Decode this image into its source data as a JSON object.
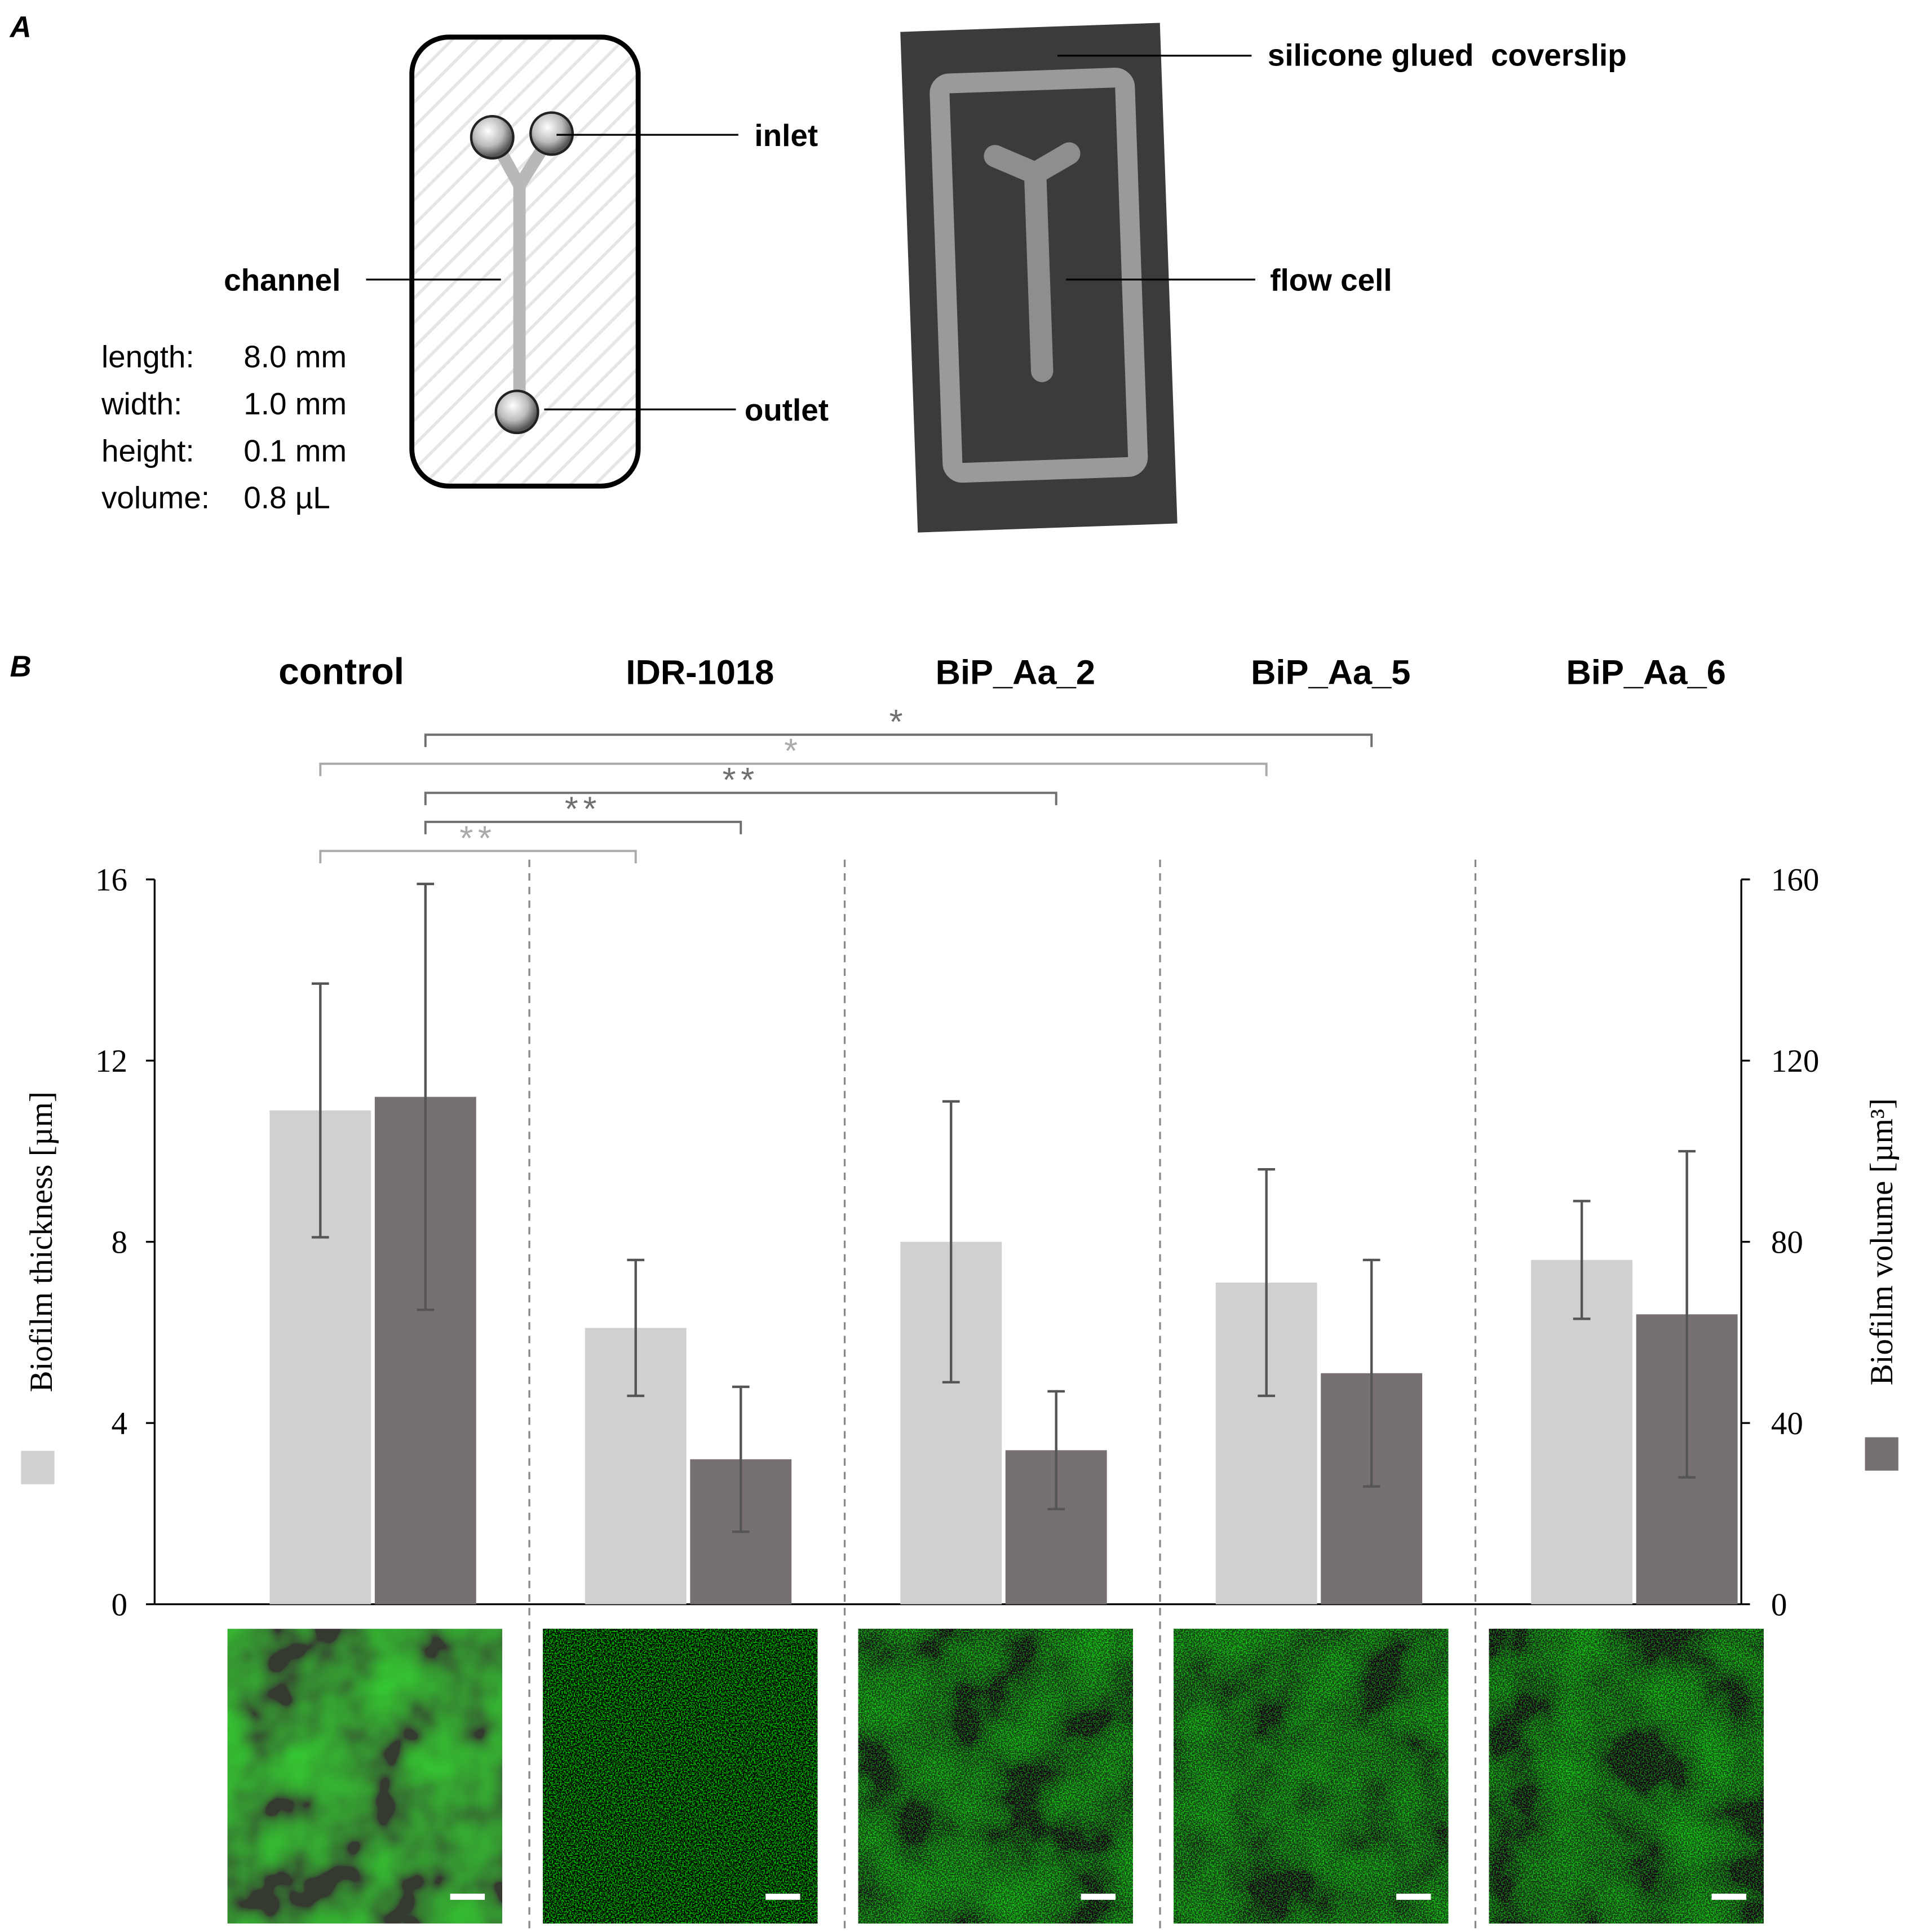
{
  "panel_a": {
    "label": "A",
    "inlet": "inlet",
    "channel": "channel",
    "outlet": "outlet",
    "specs": [
      [
        "length:",
        "8.0 mm"
      ],
      [
        "width:",
        "1.0 mm"
      ],
      [
        "height:",
        "0.1 mm"
      ],
      [
        "volume:",
        "0.8 µL"
      ]
    ],
    "coverslip": "silicone glued  coverslip",
    "flow_cell": "flow cell"
  },
  "chart_data": {
    "type": "bar",
    "panel_label": "B",
    "categories": [
      "control",
      "IDR-1018",
      "BiP_Aa_2",
      "BiP_Aa_5",
      "BiP_Aa_6"
    ],
    "series": [
      {
        "name": "Biofilm thickness [µm]",
        "color": "#d1d0cf",
        "values": [
          10.9,
          6.1,
          8.0,
          7.1,
          7.6
        ],
        "errors": [
          2.8,
          1.5,
          3.1,
          2.5,
          1.3
        ]
      },
      {
        "name": "Biofilm volume [µm³]",
        "color": "#767170",
        "axis": "y2",
        "values": [
          112,
          32,
          34,
          51,
          64
        ],
        "errors": [
          47,
          16,
          13,
          25,
          36
        ]
      }
    ],
    "ylim": [
      0,
      16
    ],
    "yticks": [
      0,
      4,
      8,
      12,
      16
    ],
    "y2lim": [
      0,
      160
    ],
    "y2ticks": [
      0,
      40,
      80,
      120,
      160
    ],
    "significance": [
      {
        "label": "*",
        "series": 1,
        "from": 0,
        "to": 3,
        "color": "#6f6f6f"
      },
      {
        "label": "*",
        "series": 0,
        "from": 0,
        "to": 3,
        "color": "#aaaaaa"
      },
      {
        "label": "**",
        "series": 1,
        "from": 0,
        "to": 2,
        "color": "#6f6f6f"
      },
      {
        "label": "**",
        "series": 1,
        "from": 0,
        "to": 1,
        "color": "#6f6f6f"
      },
      {
        "label": "**",
        "series": 0,
        "from": 0,
        "to": 1,
        "color": "#aaaaaa"
      }
    ]
  }
}
